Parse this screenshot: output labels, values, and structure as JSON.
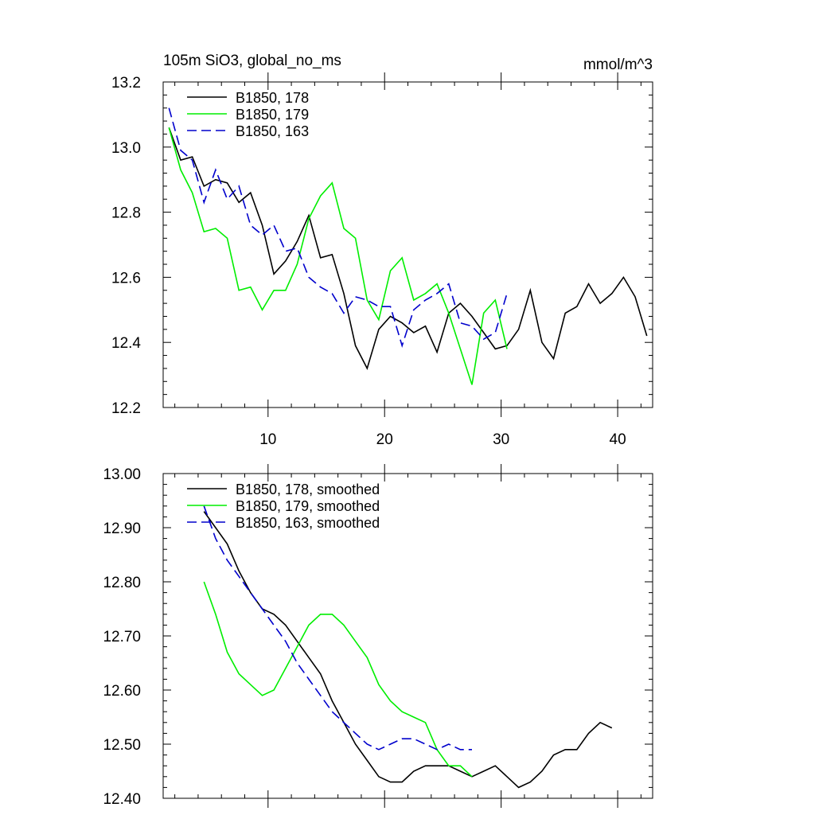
{
  "chart_data": [
    {
      "type": "line",
      "title": "105m SiO3, global_no_ms",
      "units": "mmol/m^3",
      "xlim": [
        1,
        43
      ],
      "ylim": [
        12.2,
        13.2
      ],
      "yticks": [
        "12.2",
        "12.4",
        "12.6",
        "12.8",
        "13.0",
        "13.2"
      ],
      "xticks": [
        "10",
        "20",
        "30",
        "40"
      ],
      "legend_position": "top-left",
      "series": [
        {
          "name": "B1850, 178",
          "color": "#000000",
          "dash": "solid",
          "x": [
            1.5,
            2.5,
            3.5,
            4.5,
            5.5,
            6.5,
            7.5,
            8.5,
            9.5,
            10.5,
            11.5,
            12.5,
            13.5,
            14.5,
            15.5,
            16.5,
            17.5,
            18.5,
            19.5,
            20.5,
            21.5,
            22.5,
            23.5,
            24.5,
            25.5,
            26.5,
            27.5,
            28.5,
            29.5,
            30.5,
            31.5,
            32.5,
            33.5,
            34.5,
            35.5,
            36.5,
            37.5,
            38.5,
            39.5,
            40.5,
            41.5,
            42.5
          ],
          "values": [
            13.06,
            12.96,
            12.97,
            12.88,
            12.9,
            12.89,
            12.83,
            12.86,
            12.76,
            12.61,
            12.65,
            12.71,
            12.79,
            12.66,
            12.67,
            12.55,
            12.39,
            12.32,
            12.44,
            12.48,
            12.46,
            12.43,
            12.45,
            12.37,
            12.49,
            12.52,
            12.48,
            12.43,
            12.38,
            12.39,
            12.44,
            12.56,
            12.4,
            12.35,
            12.49,
            12.51,
            12.58,
            12.52,
            12.55,
            12.6,
            12.54,
            12.42
          ]
        },
        {
          "name": "B1850, 179",
          "color": "#00ee00",
          "dash": "solid",
          "x": [
            1.5,
            2.5,
            3.5,
            4.5,
            5.5,
            6.5,
            7.5,
            8.5,
            9.5,
            10.5,
            11.5,
            12.5,
            13.5,
            14.5,
            15.5,
            16.5,
            17.5,
            18.5,
            19.5,
            20.5,
            21.5,
            22.5,
            23.5,
            24.5,
            25.5,
            26.5,
            27.5,
            28.5,
            29.5,
            30.5
          ],
          "values": [
            13.06,
            12.93,
            12.86,
            12.74,
            12.75,
            12.72,
            12.56,
            12.57,
            12.5,
            12.56,
            12.56,
            12.64,
            12.78,
            12.85,
            12.89,
            12.75,
            12.72,
            12.53,
            12.47,
            12.62,
            12.66,
            12.53,
            12.55,
            12.58,
            12.49,
            12.38,
            12.27,
            12.49,
            12.53,
            12.38
          ]
        },
        {
          "name": "B1850, 163",
          "color": "#0000cc",
          "dash": "dashed",
          "x": [
            1.5,
            2.5,
            3.5,
            4.5,
            5.5,
            6.5,
            7.5,
            8.5,
            9.5,
            10.5,
            11.5,
            12.5,
            13.5,
            14.5,
            15.5,
            16.5,
            17.5,
            18.5,
            19.5,
            20.5,
            21.5,
            22.5,
            23.5,
            24.5,
            25.5,
            26.5,
            27.5,
            28.5,
            29.5,
            30.5
          ],
          "values": [
            13.12,
            12.99,
            12.96,
            12.83,
            12.93,
            12.84,
            12.88,
            12.76,
            12.73,
            12.76,
            12.68,
            12.69,
            12.6,
            12.57,
            12.55,
            12.49,
            12.54,
            12.53,
            12.51,
            12.51,
            12.39,
            12.5,
            12.53,
            12.55,
            12.58,
            12.46,
            12.45,
            12.41,
            12.43,
            12.55
          ]
        }
      ]
    },
    {
      "type": "line",
      "xlim": [
        1,
        43
      ],
      "ylim": [
        12.4,
        13.0
      ],
      "yticks": [
        "12.40",
        "12.50",
        "12.60",
        "12.70",
        "12.80",
        "12.90",
        "13.00"
      ],
      "legend_position": "top-left",
      "series": [
        {
          "name": "B1850, 178, smoothed",
          "color": "#000000",
          "dash": "solid",
          "x": [
            4.5,
            5.5,
            6.5,
            7.5,
            8.5,
            9.5,
            10.5,
            11.5,
            12.5,
            13.5,
            14.5,
            15.5,
            16.5,
            17.5,
            18.5,
            19.5,
            20.5,
            21.5,
            22.5,
            23.5,
            24.5,
            25.5,
            26.5,
            27.5,
            28.5,
            29.5,
            30.5,
            31.5,
            32.5,
            33.5,
            34.5,
            35.5,
            36.5,
            37.5,
            38.5,
            39.5
          ],
          "values": [
            12.93,
            12.9,
            12.87,
            12.82,
            12.78,
            12.75,
            12.74,
            12.72,
            12.69,
            12.66,
            12.63,
            12.58,
            12.54,
            12.5,
            12.47,
            12.44,
            12.43,
            12.43,
            12.45,
            12.46,
            12.46,
            12.46,
            12.45,
            12.44,
            12.45,
            12.46,
            12.44,
            12.42,
            12.43,
            12.45,
            12.48,
            12.49,
            12.49,
            12.52,
            12.54,
            12.53
          ]
        },
        {
          "name": "B1850, 179, smoothed",
          "color": "#00ee00",
          "dash": "solid",
          "x": [
            4.5,
            5.5,
            6.5,
            7.5,
            8.5,
            9.5,
            10.5,
            11.5,
            12.5,
            13.5,
            14.5,
            15.5,
            16.5,
            17.5,
            18.5,
            19.5,
            20.5,
            21.5,
            22.5,
            23.5,
            24.5,
            25.5,
            26.5,
            27.5
          ],
          "values": [
            12.8,
            12.74,
            12.67,
            12.63,
            12.61,
            12.59,
            12.6,
            12.64,
            12.68,
            12.72,
            12.74,
            12.74,
            12.72,
            12.69,
            12.66,
            12.61,
            12.58,
            12.56,
            12.55,
            12.54,
            12.49,
            12.46,
            12.46,
            12.44
          ]
        },
        {
          "name": "B1850, 163, smoothed",
          "color": "#0000cc",
          "dash": "dashed",
          "x": [
            4.5,
            5.5,
            6.5,
            7.5,
            8.5,
            9.5,
            10.5,
            11.5,
            12.5,
            13.5,
            14.5,
            15.5,
            16.5,
            17.5,
            18.5,
            19.5,
            20.5,
            21.5,
            22.5,
            23.5,
            24.5,
            25.5,
            26.5,
            27.5
          ],
          "values": [
            12.94,
            12.88,
            12.84,
            12.81,
            12.78,
            12.75,
            12.72,
            12.69,
            12.65,
            12.62,
            12.59,
            12.56,
            12.54,
            12.52,
            12.5,
            12.49,
            12.5,
            12.51,
            12.51,
            12.5,
            12.49,
            12.5,
            12.49,
            12.49
          ]
        }
      ]
    }
  ]
}
